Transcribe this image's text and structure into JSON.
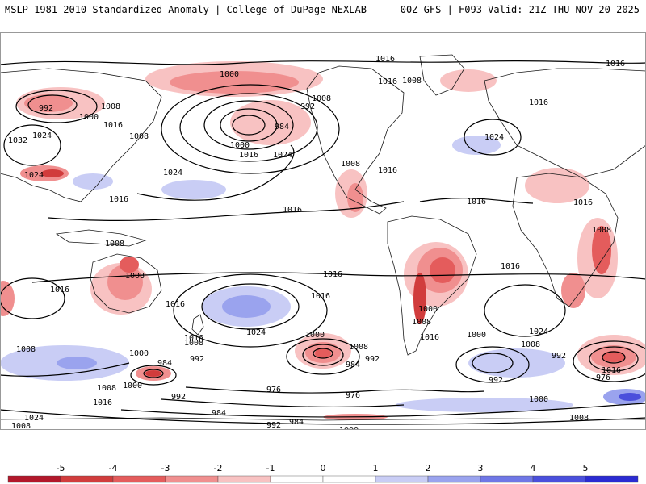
{
  "header": {
    "left": "MSLP 1981-2010 Standardized Anomaly | College of DuPage NEXLAB",
    "right": "00Z GFS | F093 Valid: 21Z THU NOV 20 2025"
  },
  "colors": {
    "anomaly_scale": [
      "#b2182b",
      "#d13c3c",
      "#e45c5c",
      "#f08f8f",
      "#f8c2c2",
      "#ffffff",
      "#ffffff",
      "#c9cdf5",
      "#9aa3ee",
      "#6f77e6",
      "#4a4fdc",
      "#2b2bd2"
    ],
    "isobar": "#000000",
    "coastline": "#1a1a1a"
  },
  "legend": {
    "ticks": [
      "-5",
      "-4",
      "-3",
      "-2",
      "-1",
      "0",
      "1",
      "2",
      "3",
      "4",
      "5"
    ]
  },
  "isobar_labels": [
    "1016",
    "1016",
    "1016",
    "1008",
    "1016",
    "1000",
    "992",
    "1000",
    "1008",
    "1016",
    "1008",
    "1032",
    "1024",
    "984",
    "992",
    "1008",
    "1000",
    "1016",
    "1024",
    "1024",
    "1024",
    "1016",
    "1016",
    "1024",
    "1008",
    "1016",
    "1016",
    "1016",
    "1008",
    "1008",
    "1008",
    "1016",
    "1016",
    "1016",
    "1016",
    "1024",
    "1016",
    "1016",
    "1000",
    "1008",
    "1016",
    "1024",
    "1000",
    "1008",
    "1000",
    "1008",
    "992",
    "984",
    "992",
    "1000",
    "1008",
    "1016",
    "1016",
    "1008",
    "992",
    "976",
    "984",
    "1008",
    "1000",
    "976",
    "992",
    "984",
    "992",
    "984",
    "976",
    "992",
    "1000",
    "1008",
    "1000",
    "1024",
    "1008"
  ]
}
